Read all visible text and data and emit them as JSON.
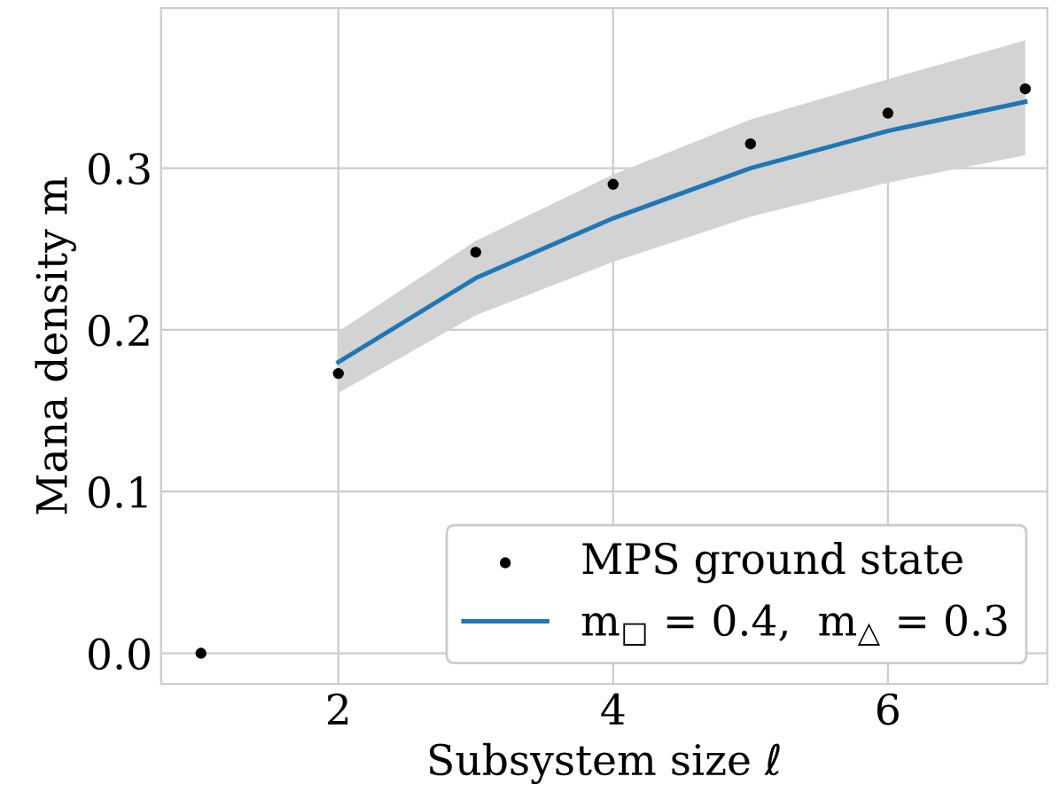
{
  "chart_data": {
    "type": "scatter",
    "xlabel": "Subsystem size ℓ",
    "ylabel": "Mana density m",
    "xlim": [
      0.71,
      7.16
    ],
    "ylim": [
      -0.019,
      0.399
    ],
    "xticks": [
      2,
      4,
      6
    ],
    "yticks": [
      {
        "value": 0,
        "label": "0.0"
      },
      0.1,
      0.2,
      0.3
    ],
    "grid": true,
    "legend": "bottom right",
    "series": [
      {
        "name": "MPS ground state",
        "color": "#000000",
        "marker": "circle",
        "x": [
          1,
          2,
          3,
          4,
          5,
          6,
          7
        ],
        "values": [
          0.0,
          0.173,
          0.248,
          0.29,
          0.315,
          0.334,
          0.349
        ]
      },
      {
        "type": "line",
        "name": "m$_{□}$ = 0.4,  m$_{△}$ = 0.3",
        "color": "#1f77b4",
        "marker": "none",
        "x": [
          2,
          3,
          4,
          5,
          6,
          7
        ],
        "values": [
          0.18,
          0.232,
          0.269,
          0.3,
          0.323,
          0.341
        ],
        "lower": [
          0.161,
          0.209,
          0.242,
          0.27,
          0.291,
          0.308
        ],
        "upper": [
          0.199,
          0.255,
          0.296,
          0.33,
          0.355,
          0.379
        ]
      }
    ]
  }
}
